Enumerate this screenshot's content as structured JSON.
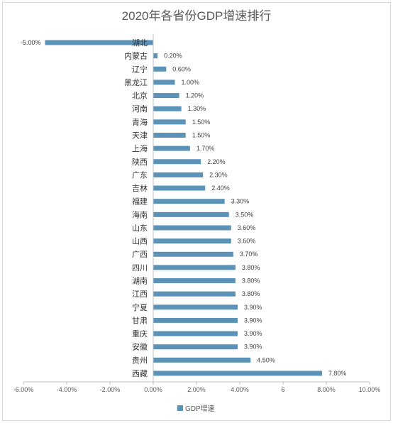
{
  "chart_data": {
    "type": "bar",
    "orientation": "horizontal",
    "title": "2020年各省份GDP增速排行",
    "categories": [
      "湖北",
      "内蒙古",
      "辽宁",
      "黑龙江",
      "北京",
      "河南",
      "青海",
      "天津",
      "上海",
      "陕西",
      "广东",
      "吉林",
      "福建",
      "海南",
      "山东",
      "山西",
      "广西",
      "四川",
      "湖南",
      "江西",
      "宁夏",
      "甘肃",
      "重庆",
      "安徽",
      "贵州",
      "西藏"
    ],
    "series": [
      {
        "name": "GDP增速",
        "values": [
          -5.0,
          0.2,
          0.6,
          1.0,
          1.2,
          1.3,
          1.5,
          1.5,
          1.7,
          2.2,
          2.3,
          2.4,
          3.3,
          3.5,
          3.6,
          3.6,
          3.7,
          3.8,
          3.8,
          3.8,
          3.9,
          3.9,
          3.9,
          3.9,
          4.5,
          7.8
        ],
        "data_labels": [
          "-5.00%",
          "0.20%",
          "0.60%",
          "1.00%",
          "1.20%",
          "1.30%",
          "1.50%",
          "1.50%",
          "1.70%",
          "2.20%",
          "2.30%",
          "2.40%",
          "3.30%",
          "3.50%",
          "3.60%",
          "3.60%",
          "3.70%",
          "3.80%",
          "3.80%",
          "3.80%",
          "3.90%",
          "3.90%",
          "3.90%",
          "3.90%",
          "4.50%",
          "7.80%"
        ],
        "color": "#5b93b8"
      }
    ],
    "xlim": [
      -6,
      10
    ],
    "x_ticks": [
      -6,
      -4,
      -2,
      0,
      2,
      4,
      6,
      8,
      10
    ],
    "x_tick_labels": [
      "-6.00%",
      "-4.00%",
      "-2.00%",
      "0.00%",
      "2.00%",
      "4.00%",
      "6",
      "8.00%",
      "10.00%"
    ],
    "gridlines": false,
    "legend_position": "bottom-left",
    "colors": {
      "bar": "#5b93b8",
      "axis": "#bfbfbf",
      "text": "#595959",
      "background": "#ffffff"
    }
  }
}
